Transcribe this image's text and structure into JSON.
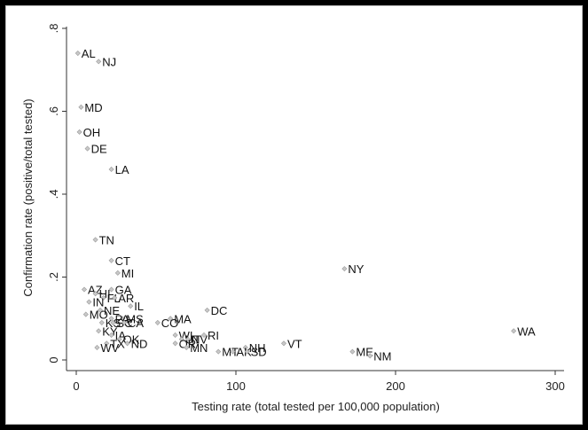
{
  "chart_data": {
    "type": "scatter",
    "title": "",
    "xlabel": "Testing rate (total tested per 100,000 population)",
    "ylabel": "Confirmation rate (positive/total tested)",
    "xlim": [
      0,
      300
    ],
    "ylim": [
      0,
      0.8
    ],
    "xticks": [
      0,
      100,
      200,
      300
    ],
    "xtick_labels": [
      "0",
      "100",
      "200",
      "300"
    ],
    "yticks": [
      0,
      0.2,
      0.4,
      0.6,
      0.8
    ],
    "ytick_labels": [
      "0",
      ".2",
      ".4",
      ".6",
      ".8"
    ],
    "grid": false,
    "legend": null,
    "marker": "diamond",
    "marker_color": "#c8c8c8",
    "points": [
      {
        "label": "AL",
        "x": 1,
        "y": 0.74
      },
      {
        "label": "NJ",
        "x": 14,
        "y": 0.72
      },
      {
        "label": "MD",
        "x": 3,
        "y": 0.61
      },
      {
        "label": "OH",
        "x": 2,
        "y": 0.55
      },
      {
        "label": "DE",
        "x": 7,
        "y": 0.51
      },
      {
        "label": "LA",
        "x": 22,
        "y": 0.46
      },
      {
        "label": "TN",
        "x": 12,
        "y": 0.29
      },
      {
        "label": "CT",
        "x": 22,
        "y": 0.24
      },
      {
        "label": "MI",
        "x": 26,
        "y": 0.21
      },
      {
        "label": "NY",
        "x": 168,
        "y": 0.22
      },
      {
        "label": "GA",
        "x": 22,
        "y": 0.17
      },
      {
        "label": "AZ",
        "x": 5,
        "y": 0.17
      },
      {
        "label": "HI",
        "x": 12,
        "y": 0.16
      },
      {
        "label": "FL",
        "x": 17,
        "y": 0.15
      },
      {
        "label": "AR",
        "x": 24,
        "y": 0.15
      },
      {
        "label": "IN",
        "x": 8,
        "y": 0.14
      },
      {
        "label": "IL",
        "x": 34,
        "y": 0.13
      },
      {
        "label": "DC",
        "x": 82,
        "y": 0.12
      },
      {
        "label": "MO",
        "x": 6,
        "y": 0.11
      },
      {
        "label": "NE",
        "x": 15,
        "y": 0.12
      },
      {
        "label": "MS",
        "x": 29,
        "y": 0.1
      },
      {
        "label": "MA",
        "x": 59,
        "y": 0.1
      },
      {
        "label": "CO",
        "x": 51,
        "y": 0.09
      },
      {
        "label": "KS",
        "x": 16,
        "y": 0.09
      },
      {
        "label": "PA",
        "x": 22,
        "y": 0.1
      },
      {
        "label": "SC",
        "x": 23,
        "y": 0.09
      },
      {
        "label": "CA",
        "x": 30,
        "y": 0.09
      },
      {
        "label": "KY",
        "x": 14,
        "y": 0.07
      },
      {
        "label": "IA",
        "x": 22,
        "y": 0.06
      },
      {
        "label": "RI",
        "x": 80,
        "y": 0.06
      },
      {
        "label": "WA",
        "x": 274,
        "y": 0.07
      },
      {
        "label": "OK",
        "x": 27,
        "y": 0.05
      },
      {
        "label": "ND",
        "x": 32,
        "y": 0.04
      },
      {
        "label": "WI",
        "x": 62,
        "y": 0.06
      },
      {
        "label": "UT",
        "x": 66,
        "y": 0.05
      },
      {
        "label": "NV",
        "x": 70,
        "y": 0.05
      },
      {
        "label": "OR",
        "x": 62,
        "y": 0.04
      },
      {
        "label": "MN",
        "x": 69,
        "y": 0.03
      },
      {
        "label": "VT",
        "x": 130,
        "y": 0.04
      },
      {
        "label": "NH",
        "x": 106,
        "y": 0.03
      },
      {
        "label": "MT",
        "x": 89,
        "y": 0.02
      },
      {
        "label": "AK",
        "x": 98,
        "y": 0.02
      },
      {
        "label": "SD",
        "x": 107,
        "y": 0.02
      },
      {
        "label": "ME",
        "x": 173,
        "y": 0.02
      },
      {
        "label": "NM",
        "x": 184,
        "y": 0.01
      },
      {
        "label": "TX",
        "x": 19,
        "y": 0.04
      },
      {
        "label": "WV",
        "x": 13,
        "y": 0.03
      }
    ]
  }
}
